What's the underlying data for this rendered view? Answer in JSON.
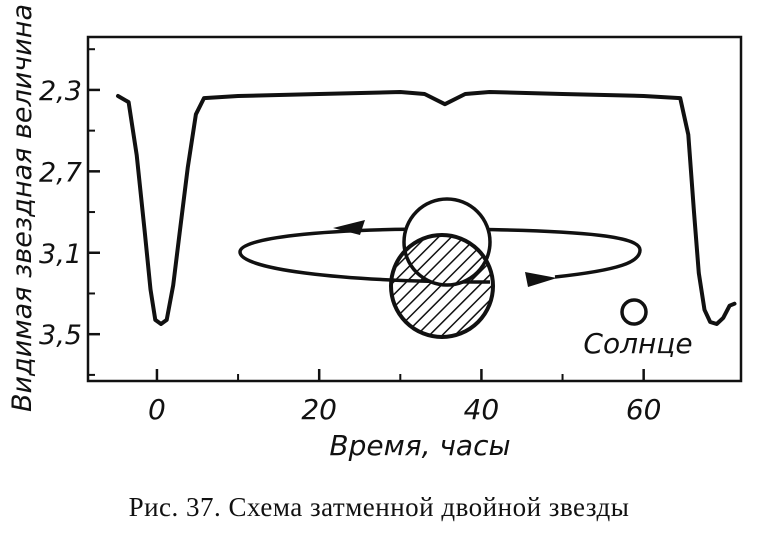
{
  "caption": "Рис. 37. Схема затменной двойной звезды",
  "chart_data": {
    "type": "line",
    "title": "",
    "xlabel": "Время, часы",
    "ylabel": "Видимая звездная величина",
    "x_ticks": [
      {
        "value": 0,
        "label": "0"
      },
      {
        "value": 20,
        "label": "20"
      },
      {
        "value": 40,
        "label": "40"
      },
      {
        "value": 60,
        "label": "60"
      }
    ],
    "y_ticks": [
      {
        "value": 2.3,
        "label": "2,3"
      },
      {
        "value": 2.7,
        "label": "2,7"
      },
      {
        "value": 3.1,
        "label": "3,1"
      },
      {
        "value": 3.5,
        "label": "3,5"
      }
    ],
    "xlim": [
      -8.5,
      72
    ],
    "ylim": [
      2.04,
      3.73
    ],
    "y_inverted": true,
    "series": [
      {
        "x": [
          -4.8,
          -3.5,
          -2.5,
          -1.5,
          -0.8,
          -0.2,
          0.5,
          1.2,
          2,
          2.8,
          3.8,
          4.8,
          5.8,
          10,
          20,
          30,
          33,
          35.5,
          38,
          41,
          50,
          60,
          64.5,
          65.5,
          66.2,
          66.8,
          67.5,
          68.2,
          69,
          69.8,
          70.6,
          71.2
        ],
        "y": [
          2.33,
          2.36,
          2.62,
          3.0,
          3.28,
          3.43,
          3.45,
          3.43,
          3.26,
          3.0,
          2.68,
          2.42,
          2.34,
          2.33,
          2.32,
          2.31,
          2.32,
          2.37,
          2.32,
          2.31,
          2.32,
          2.33,
          2.34,
          2.52,
          2.9,
          3.2,
          3.38,
          3.44,
          3.45,
          3.42,
          3.36,
          3.35
        ]
      }
    ],
    "annotations": [
      {
        "text": "Солнце"
      }
    ]
  }
}
